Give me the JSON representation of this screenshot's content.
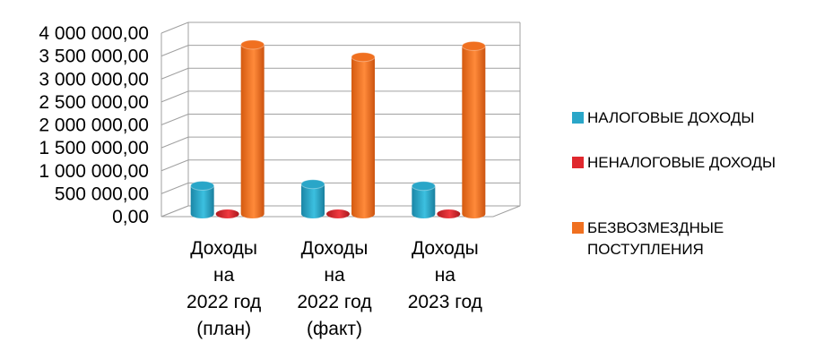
{
  "chart_data": {
    "type": "bar",
    "categories": [
      [
        "Доходы",
        "на",
        "2022 год",
        "(план)"
      ],
      [
        "Доходы",
        "на",
        "2022 год",
        "(факт)"
      ],
      [
        "Доходы",
        "на",
        "2023 год",
        ""
      ]
    ],
    "series": [
      {
        "name": "НАЛОГОВЫЕ  ДОХОДЫ",
        "color": "#2aa6c8",
        "values": [
          615000,
          650000,
          610000
        ]
      },
      {
        "name": "НЕНАЛОГОВЫЕ ДОХОДЫ",
        "color": "#e0282e",
        "values": [
          45000,
          50000,
          50000
        ]
      },
      {
        "name": "БЕЗВОЗМЕЗДНЫЕ ПОСТУПЛЕНИЯ",
        "color": "#f07020",
        "values": [
          3690000,
          3420000,
          3660000
        ]
      }
    ],
    "y_ticks": [
      "0,00",
      "500 000,00",
      "1 000 000,00",
      "1 500 000,00",
      "2 000 000,00",
      "2 500 000,00",
      "3 000 000,00",
      "3 500 000,00",
      "4 000 000,00"
    ],
    "ylim": [
      0,
      4000000
    ],
    "grid": true,
    "legend_position": "right",
    "title": "",
    "xlabel": "",
    "ylabel": ""
  }
}
